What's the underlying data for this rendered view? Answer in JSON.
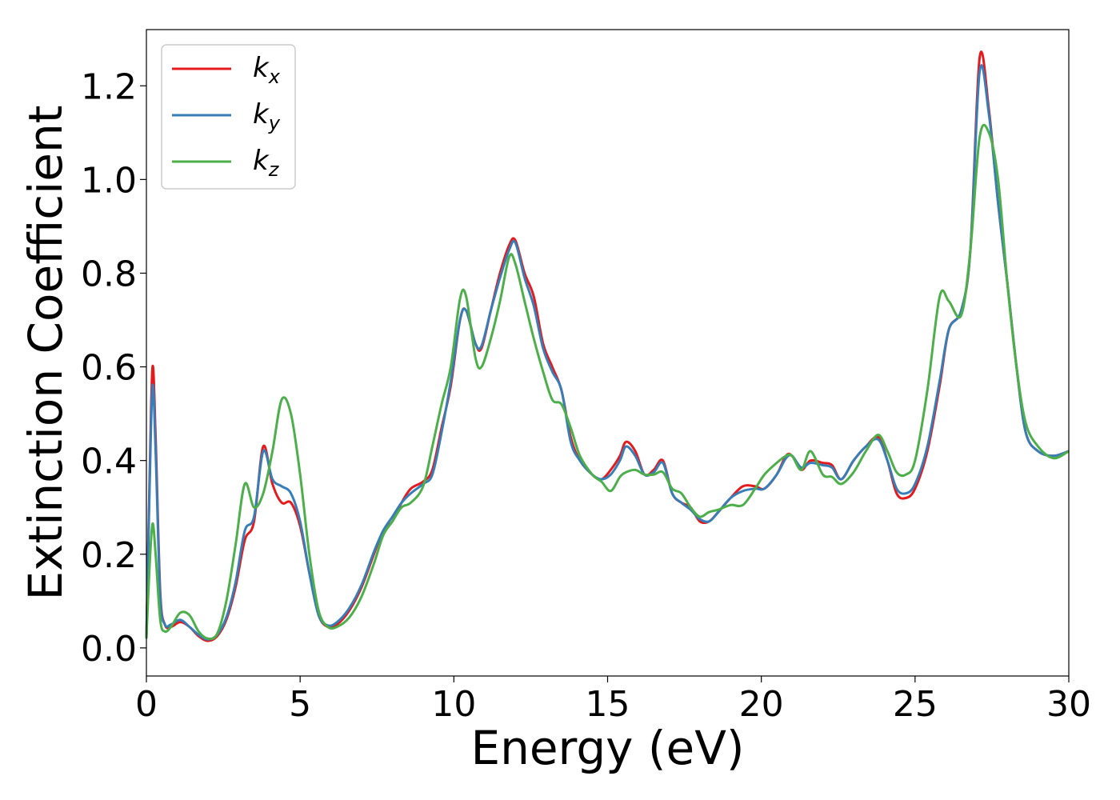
{
  "chart_data": {
    "type": "line",
    "xlabel": "Energy (eV)",
    "ylabel": "Extinction Coefficient",
    "xlim": [
      0,
      30
    ],
    "ylim": [
      -0.06,
      1.32
    ],
    "xticks": [
      0,
      5,
      10,
      15,
      20,
      25,
      30
    ],
    "xtick_labels": [
      "0",
      "5",
      "10",
      "15",
      "20",
      "25",
      "30"
    ],
    "yticks": [
      0.0,
      0.2,
      0.4,
      0.6,
      0.8,
      1.0,
      1.2
    ],
    "ytick_labels": [
      "0.0",
      "0.2",
      "0.4",
      "0.6",
      "0.8",
      "1.0",
      "1.2"
    ],
    "grid": false,
    "legend_position": "top-left",
    "series": [
      {
        "name": "kx",
        "base": "k",
        "sub": "x",
        "color": "#e41a1c",
        "points": [
          [
            0,
            0.02
          ],
          [
            0.1,
            0.35
          ],
          [
            0.2,
            0.6
          ],
          [
            0.3,
            0.45
          ],
          [
            0.45,
            0.12
          ],
          [
            0.6,
            0.05
          ],
          [
            0.8,
            0.045
          ],
          [
            1.1,
            0.055
          ],
          [
            1.4,
            0.045
          ],
          [
            1.7,
            0.025
          ],
          [
            2.0,
            0.015
          ],
          [
            2.3,
            0.025
          ],
          [
            2.6,
            0.06
          ],
          [
            2.9,
            0.13
          ],
          [
            3.2,
            0.23
          ],
          [
            3.5,
            0.27
          ],
          [
            3.8,
            0.43
          ],
          [
            4.1,
            0.35
          ],
          [
            4.4,
            0.31
          ],
          [
            4.7,
            0.31
          ],
          [
            5.0,
            0.26
          ],
          [
            5.3,
            0.16
          ],
          [
            5.6,
            0.07
          ],
          [
            5.9,
            0.045
          ],
          [
            6.2,
            0.05
          ],
          [
            6.6,
            0.08
          ],
          [
            7.0,
            0.13
          ],
          [
            7.4,
            0.2
          ],
          [
            7.7,
            0.25
          ],
          [
            8.0,
            0.27
          ],
          [
            8.3,
            0.31
          ],
          [
            8.6,
            0.34
          ],
          [
            9.0,
            0.355
          ],
          [
            9.3,
            0.38
          ],
          [
            9.6,
            0.47
          ],
          [
            9.9,
            0.56
          ],
          [
            10.2,
            0.7
          ],
          [
            10.4,
            0.72
          ],
          [
            10.7,
            0.65
          ],
          [
            10.9,
            0.64
          ],
          [
            11.2,
            0.72
          ],
          [
            11.5,
            0.8
          ],
          [
            11.8,
            0.86
          ],
          [
            12.0,
            0.87
          ],
          [
            12.3,
            0.8
          ],
          [
            12.6,
            0.75
          ],
          [
            12.9,
            0.65
          ],
          [
            13.2,
            0.6
          ],
          [
            13.5,
            0.55
          ],
          [
            13.8,
            0.45
          ],
          [
            14.1,
            0.4
          ],
          [
            14.5,
            0.37
          ],
          [
            14.8,
            0.36
          ],
          [
            15.1,
            0.38
          ],
          [
            15.4,
            0.41
          ],
          [
            15.6,
            0.44
          ],
          [
            15.9,
            0.42
          ],
          [
            16.2,
            0.37
          ],
          [
            16.5,
            0.38
          ],
          [
            16.8,
            0.4
          ],
          [
            17.1,
            0.33
          ],
          [
            17.4,
            0.31
          ],
          [
            17.7,
            0.3
          ],
          [
            18.0,
            0.27
          ],
          [
            18.3,
            0.27
          ],
          [
            18.6,
            0.29
          ],
          [
            19.0,
            0.32
          ],
          [
            19.4,
            0.345
          ],
          [
            19.8,
            0.345
          ],
          [
            20.1,
            0.34
          ],
          [
            20.5,
            0.37
          ],
          [
            20.8,
            0.41
          ],
          [
            21.0,
            0.41
          ],
          [
            21.3,
            0.38
          ],
          [
            21.6,
            0.4
          ],
          [
            22.0,
            0.395
          ],
          [
            22.3,
            0.39
          ],
          [
            22.6,
            0.36
          ],
          [
            23.0,
            0.4
          ],
          [
            23.4,
            0.43
          ],
          [
            23.8,
            0.45
          ],
          [
            24.1,
            0.4
          ],
          [
            24.4,
            0.33
          ],
          [
            24.7,
            0.32
          ],
          [
            25.0,
            0.34
          ],
          [
            25.4,
            0.42
          ],
          [
            25.8,
            0.56
          ],
          [
            26.1,
            0.68
          ],
          [
            26.5,
            0.72
          ],
          [
            26.8,
            0.85
          ],
          [
            27.1,
            1.26
          ],
          [
            27.4,
            1.15
          ],
          [
            27.7,
            0.95
          ],
          [
            28.0,
            0.78
          ],
          [
            28.3,
            0.6
          ],
          [
            28.6,
            0.46
          ],
          [
            29.0,
            0.42
          ],
          [
            29.5,
            0.41
          ],
          [
            30.0,
            0.42
          ]
        ]
      },
      {
        "name": "ky",
        "base": "k",
        "sub": "y",
        "color": "#377eb8",
        "points": [
          [
            0,
            0.02
          ],
          [
            0.1,
            0.33
          ],
          [
            0.2,
            0.56
          ],
          [
            0.3,
            0.42
          ],
          [
            0.45,
            0.11
          ],
          [
            0.6,
            0.05
          ],
          [
            0.8,
            0.05
          ],
          [
            1.1,
            0.06
          ],
          [
            1.4,
            0.045
          ],
          [
            1.7,
            0.028
          ],
          [
            2.0,
            0.018
          ],
          [
            2.3,
            0.028
          ],
          [
            2.6,
            0.065
          ],
          [
            2.9,
            0.14
          ],
          [
            3.2,
            0.25
          ],
          [
            3.5,
            0.28
          ],
          [
            3.8,
            0.42
          ],
          [
            4.1,
            0.36
          ],
          [
            4.4,
            0.345
          ],
          [
            4.7,
            0.33
          ],
          [
            5.0,
            0.27
          ],
          [
            5.3,
            0.16
          ],
          [
            5.6,
            0.07
          ],
          [
            5.9,
            0.048
          ],
          [
            6.2,
            0.055
          ],
          [
            6.6,
            0.085
          ],
          [
            7.0,
            0.135
          ],
          [
            7.4,
            0.205
          ],
          [
            7.7,
            0.25
          ],
          [
            8.0,
            0.28
          ],
          [
            8.3,
            0.31
          ],
          [
            8.6,
            0.33
          ],
          [
            9.0,
            0.35
          ],
          [
            9.3,
            0.37
          ],
          [
            9.6,
            0.46
          ],
          [
            9.9,
            0.57
          ],
          [
            10.2,
            0.7
          ],
          [
            10.4,
            0.72
          ],
          [
            10.7,
            0.65
          ],
          [
            10.9,
            0.645
          ],
          [
            11.2,
            0.72
          ],
          [
            11.5,
            0.79
          ],
          [
            11.8,
            0.85
          ],
          [
            12.0,
            0.865
          ],
          [
            12.3,
            0.79
          ],
          [
            12.6,
            0.73
          ],
          [
            12.9,
            0.64
          ],
          [
            13.2,
            0.59
          ],
          [
            13.5,
            0.55
          ],
          [
            13.8,
            0.44
          ],
          [
            14.1,
            0.4
          ],
          [
            14.5,
            0.37
          ],
          [
            14.8,
            0.36
          ],
          [
            15.1,
            0.37
          ],
          [
            15.4,
            0.4
          ],
          [
            15.6,
            0.43
          ],
          [
            15.9,
            0.41
          ],
          [
            16.2,
            0.37
          ],
          [
            16.5,
            0.375
          ],
          [
            16.8,
            0.395
          ],
          [
            17.1,
            0.33
          ],
          [
            17.4,
            0.31
          ],
          [
            17.7,
            0.295
          ],
          [
            18.0,
            0.275
          ],
          [
            18.3,
            0.27
          ],
          [
            18.6,
            0.29
          ],
          [
            19.0,
            0.32
          ],
          [
            19.4,
            0.335
          ],
          [
            19.8,
            0.34
          ],
          [
            20.1,
            0.34
          ],
          [
            20.5,
            0.37
          ],
          [
            20.8,
            0.405
          ],
          [
            21.0,
            0.41
          ],
          [
            21.3,
            0.385
          ],
          [
            21.6,
            0.395
          ],
          [
            22.0,
            0.39
          ],
          [
            22.3,
            0.385
          ],
          [
            22.6,
            0.36
          ],
          [
            23.0,
            0.4
          ],
          [
            23.4,
            0.43
          ],
          [
            23.8,
            0.445
          ],
          [
            24.1,
            0.4
          ],
          [
            24.4,
            0.34
          ],
          [
            24.7,
            0.33
          ],
          [
            25.0,
            0.35
          ],
          [
            25.4,
            0.43
          ],
          [
            25.8,
            0.57
          ],
          [
            26.1,
            0.68
          ],
          [
            26.5,
            0.72
          ],
          [
            26.8,
            0.85
          ],
          [
            27.1,
            1.23
          ],
          [
            27.4,
            1.14
          ],
          [
            27.7,
            0.95
          ],
          [
            28.0,
            0.78
          ],
          [
            28.3,
            0.6
          ],
          [
            28.6,
            0.46
          ],
          [
            29.0,
            0.42
          ],
          [
            29.5,
            0.41
          ],
          [
            30.0,
            0.42
          ]
        ]
      },
      {
        "name": "kz",
        "base": "k",
        "sub": "z",
        "color": "#4daf4a",
        "points": [
          [
            0,
            0.02
          ],
          [
            0.1,
            0.17
          ],
          [
            0.2,
            0.265
          ],
          [
            0.3,
            0.2
          ],
          [
            0.45,
            0.06
          ],
          [
            0.6,
            0.035
          ],
          [
            0.8,
            0.045
          ],
          [
            1.1,
            0.075
          ],
          [
            1.4,
            0.07
          ],
          [
            1.7,
            0.035
          ],
          [
            2.0,
            0.02
          ],
          [
            2.3,
            0.03
          ],
          [
            2.6,
            0.1
          ],
          [
            2.9,
            0.22
          ],
          [
            3.2,
            0.35
          ],
          [
            3.5,
            0.3
          ],
          [
            3.8,
            0.33
          ],
          [
            4.1,
            0.42
          ],
          [
            4.4,
            0.53
          ],
          [
            4.7,
            0.5
          ],
          [
            5.0,
            0.37
          ],
          [
            5.3,
            0.2
          ],
          [
            5.6,
            0.08
          ],
          [
            5.9,
            0.045
          ],
          [
            6.2,
            0.045
          ],
          [
            6.6,
            0.065
          ],
          [
            7.0,
            0.11
          ],
          [
            7.4,
            0.18
          ],
          [
            7.7,
            0.24
          ],
          [
            8.0,
            0.27
          ],
          [
            8.3,
            0.3
          ],
          [
            8.6,
            0.31
          ],
          [
            9.0,
            0.345
          ],
          [
            9.3,
            0.43
          ],
          [
            9.6,
            0.52
          ],
          [
            9.9,
            0.6
          ],
          [
            10.2,
            0.745
          ],
          [
            10.4,
            0.75
          ],
          [
            10.7,
            0.62
          ],
          [
            10.9,
            0.6
          ],
          [
            11.2,
            0.66
          ],
          [
            11.5,
            0.74
          ],
          [
            11.8,
            0.835
          ],
          [
            12.0,
            0.82
          ],
          [
            12.3,
            0.74
          ],
          [
            12.6,
            0.66
          ],
          [
            12.9,
            0.59
          ],
          [
            13.2,
            0.53
          ],
          [
            13.5,
            0.52
          ],
          [
            13.8,
            0.47
          ],
          [
            14.1,
            0.41
          ],
          [
            14.5,
            0.37
          ],
          [
            14.8,
            0.355
          ],
          [
            15.1,
            0.335
          ],
          [
            15.4,
            0.365
          ],
          [
            15.6,
            0.375
          ],
          [
            15.9,
            0.38
          ],
          [
            16.2,
            0.37
          ],
          [
            16.5,
            0.37
          ],
          [
            16.8,
            0.375
          ],
          [
            17.1,
            0.34
          ],
          [
            17.4,
            0.33
          ],
          [
            17.7,
            0.3
          ],
          [
            18.0,
            0.28
          ],
          [
            18.3,
            0.29
          ],
          [
            18.6,
            0.295
          ],
          [
            19.0,
            0.305
          ],
          [
            19.4,
            0.305
          ],
          [
            19.8,
            0.34
          ],
          [
            20.1,
            0.37
          ],
          [
            20.5,
            0.395
          ],
          [
            20.8,
            0.41
          ],
          [
            21.0,
            0.41
          ],
          [
            21.3,
            0.38
          ],
          [
            21.6,
            0.42
          ],
          [
            22.0,
            0.37
          ],
          [
            22.3,
            0.365
          ],
          [
            22.6,
            0.35
          ],
          [
            23.0,
            0.375
          ],
          [
            23.4,
            0.42
          ],
          [
            23.8,
            0.455
          ],
          [
            24.1,
            0.42
          ],
          [
            24.4,
            0.375
          ],
          [
            24.7,
            0.37
          ],
          [
            25.0,
            0.4
          ],
          [
            25.4,
            0.55
          ],
          [
            25.8,
            0.75
          ],
          [
            26.1,
            0.74
          ],
          [
            26.5,
            0.71
          ],
          [
            26.8,
            0.85
          ],
          [
            27.1,
            1.09
          ],
          [
            27.4,
            1.1
          ],
          [
            27.7,
            1.0
          ],
          [
            28.0,
            0.78
          ],
          [
            28.3,
            0.6
          ],
          [
            28.6,
            0.48
          ],
          [
            29.0,
            0.43
          ],
          [
            29.5,
            0.405
          ],
          [
            30.0,
            0.42
          ]
        ]
      }
    ]
  }
}
